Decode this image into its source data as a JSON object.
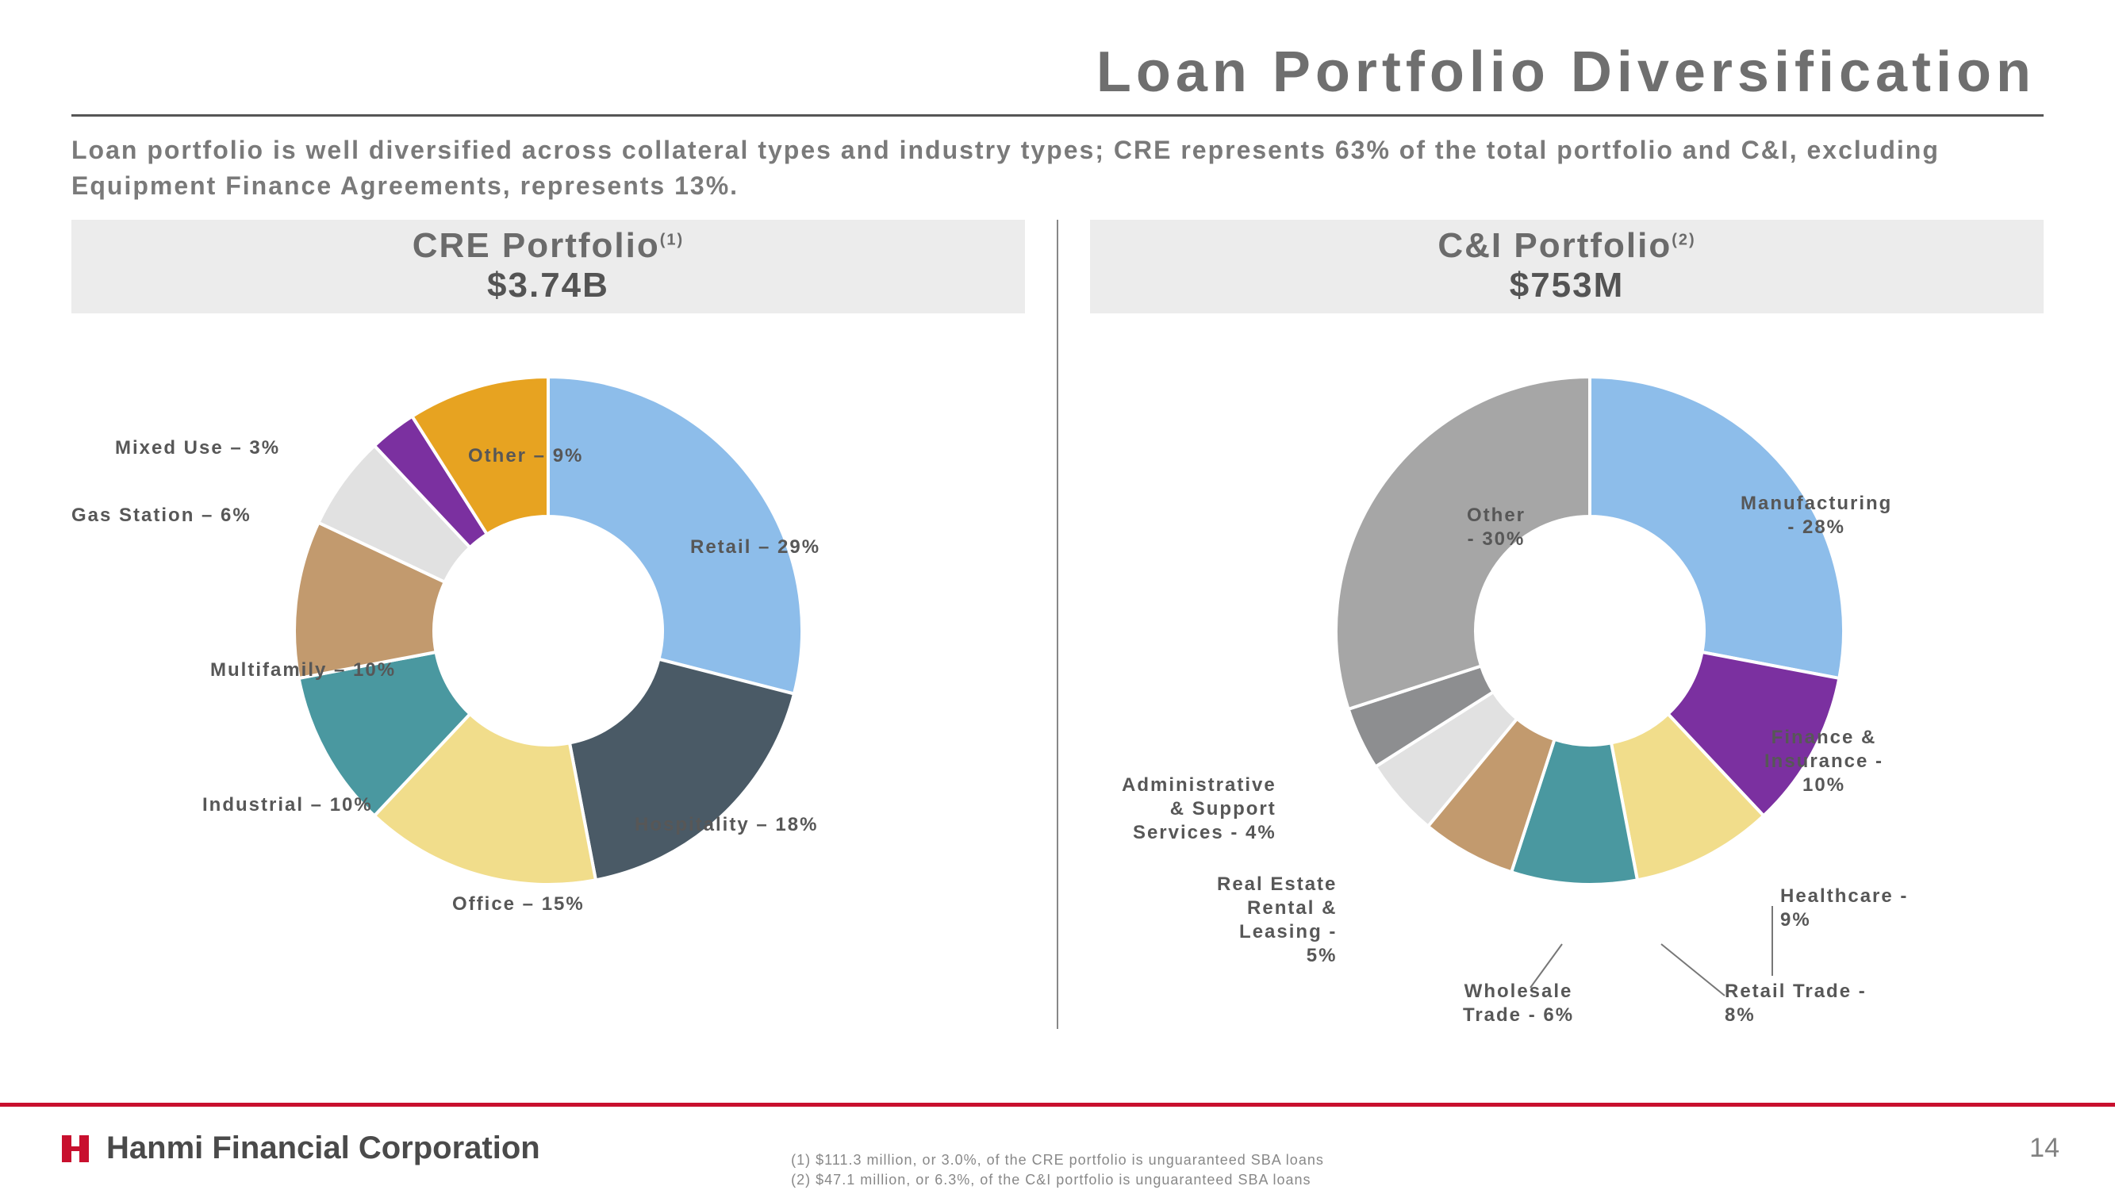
{
  "title": "Loan Portfolio Diversification",
  "subtitle": "Loan portfolio is well diversified across collateral types and industry types; CRE represents 63% of the total portfolio and C&I, excluding Equipment Finance Agreements, represents 13%.",
  "left": {
    "section_title": "CRE Portfolio",
    "section_sup": "(1)",
    "section_amount": "$3.74B"
  },
  "right": {
    "section_title": "C&I Portfolio",
    "section_sup": "(2)",
    "section_amount": "$753M"
  },
  "cre_chart": {
    "type": "donut",
    "inner_ratio": 0.45,
    "stroke_color": "#ffffff",
    "stroke_width": 4,
    "slices": [
      {
        "label": "Retail – 29%",
        "value": 29,
        "color": "#8dbdea"
      },
      {
        "label": "Hospitality – 18%",
        "value": 18,
        "color": "#4a5a66"
      },
      {
        "label": "Office – 15%",
        "value": 15,
        "color": "#f1dd8b"
      },
      {
        "label": "Industrial – 10%",
        "value": 10,
        "color": "#4a98a0"
      },
      {
        "label": "Multifamily – 10%",
        "value": 10,
        "color": "#c29a6e"
      },
      {
        "label": "Gas Station – 6%",
        "value": 6,
        "color": "#e1e1e1"
      },
      {
        "label": "Mixed Use – 3%",
        "value": 3,
        "color": "#7b30a0"
      },
      {
        "label": "Other – 9%",
        "value": 9,
        "color": "#e7a321"
      }
    ],
    "label_text": {
      "retail": "Retail – 29%",
      "hospitality": "Hospitality – 18%",
      "office": "Office – 15%",
      "industrial": "Industrial – 10%",
      "multifamily": "Multifamily – 10%",
      "gas_station": "Gas Station – 6%",
      "mixed_use": "Mixed Use – 3%",
      "other": "Other – 9%"
    }
  },
  "ci_chart": {
    "type": "donut",
    "inner_ratio": 0.45,
    "stroke_color": "#ffffff",
    "stroke_width": 4,
    "slices": [
      {
        "label": "Manufacturing - 28%",
        "value": 28,
        "color": "#8dbdea"
      },
      {
        "label": "Finance & Insurance - 10%",
        "value": 10,
        "color": "#7b30a0"
      },
      {
        "label": "Healthcare - 9%",
        "value": 9,
        "color": "#f1dd8b"
      },
      {
        "label": "Retail Trade - 8%",
        "value": 8,
        "color": "#4a98a0"
      },
      {
        "label": "Wholesale Trade - 6%",
        "value": 6,
        "color": "#c29a6e"
      },
      {
        "label": "Real Estate Rental & Leasing - 5%",
        "value": 5,
        "color": "#e1e1e1"
      },
      {
        "label": "Administrative & Support Services - 4%",
        "value": 4,
        "color": "#8d8e90"
      },
      {
        "label": "Other - 30%",
        "value": 30,
        "color": "#a6a6a6"
      }
    ],
    "label_text": {
      "manufacturing_l1": "Manufacturing",
      "manufacturing_l2": "- 28%",
      "finance_l1": "Finance &",
      "finance_l2": "Insurance -",
      "finance_l3": "10%",
      "healthcare_l1": "Healthcare -",
      "healthcare_l2": "9%",
      "retail_trade_l1": "Retail Trade -",
      "retail_trade_l2": "8%",
      "wholesale_l1": "Wholesale",
      "wholesale_l2": "Trade -  6%",
      "real_estate_l1": "Real Estate",
      "real_estate_l2": "Rental &",
      "real_estate_l3": "Leasing -",
      "real_estate_l4": "5%",
      "admin_l1": "Administrative",
      "admin_l2": "& Support",
      "admin_l3": "Services -  4%",
      "other_l1": "Other",
      "other_l2": "- 30%"
    }
  },
  "footnotes": {
    "f1": "(1)   $111.3 million, or 3.0%, of the CRE portfolio is unguaranteed SBA loans",
    "f2": "(2)   $47.1 million, or 6.3%, of the C&I portfolio is unguaranteed SBA loans"
  },
  "footer": {
    "company": "Hanmi Financial Corporation",
    "page": "14",
    "accent_color": "#c8102e"
  }
}
